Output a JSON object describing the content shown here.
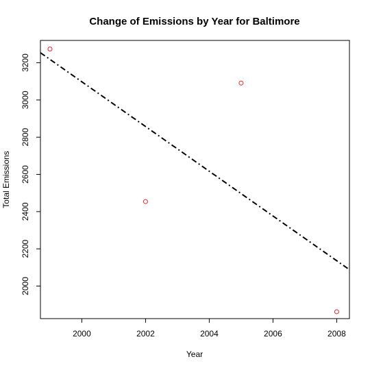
{
  "chart_data": {
    "type": "scatter",
    "title": "Change of Emissions by Year for Baltimore",
    "xlabel": "Year",
    "ylabel": "Total Emissions",
    "xlim": [
      1998.7,
      2008.4
    ],
    "ylim": [
      1825,
      3320
    ],
    "x_ticks": [
      2000,
      2002,
      2004,
      2006,
      2008
    ],
    "y_ticks": [
      2000,
      2200,
      2400,
      2600,
      2800,
      3000,
      3200
    ],
    "points": [
      {
        "x": 1999,
        "y": 3274
      },
      {
        "x": 2002,
        "y": 2454
      },
      {
        "x": 2005,
        "y": 3091
      },
      {
        "x": 2008,
        "y": 1862
      }
    ],
    "point_color": "#e8202a",
    "point_style": "open-circle",
    "trend_line": {
      "style": "dot-dash",
      "color": "#000000",
      "from": {
        "x": 1998.7,
        "y": 3254
      },
      "to": {
        "x": 2008.4,
        "y": 2088
      }
    },
    "grid": false,
    "legend": "none"
  }
}
